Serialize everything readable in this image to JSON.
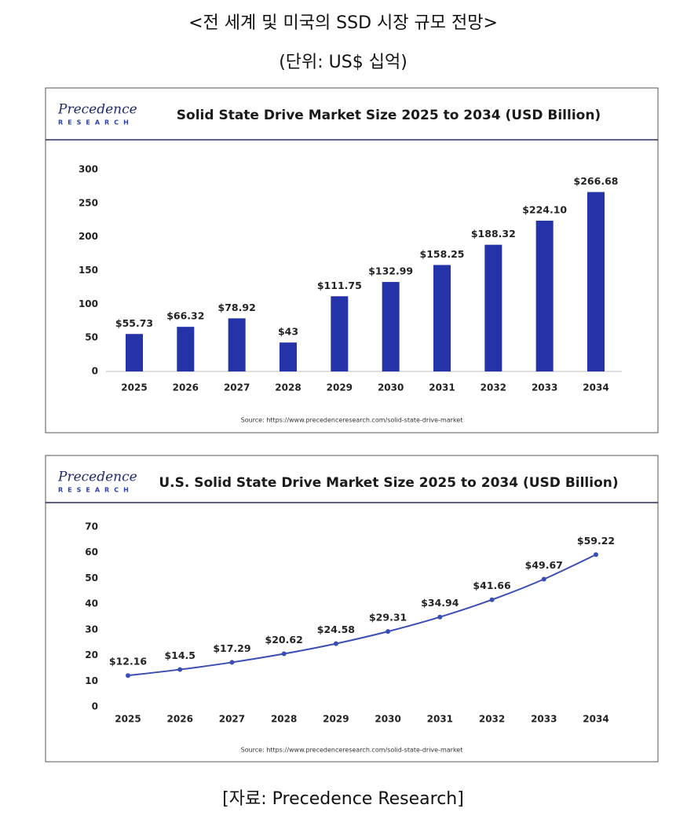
{
  "header": {
    "title": "<전 세계 및 미국의 SSD 시장 규모 전망>",
    "unit": "(단위: US$ 십억)"
  },
  "chart_data": [
    {
      "type": "bar",
      "logo": {
        "name": "Precedence",
        "sub": "RESEARCH"
      },
      "title": "Solid State Drive Market Size 2025 to 2034 (USD Billion)",
      "categories": [
        "2025",
        "2026",
        "2027",
        "2028",
        "2029",
        "2030",
        "2031",
        "2032",
        "2033",
        "2034"
      ],
      "values": [
        55.73,
        66.32,
        78.92,
        43,
        111.75,
        132.99,
        158.25,
        188.32,
        224.1,
        266.68
      ],
      "value_labels": [
        "$55.73",
        "$66.32",
        "$78.92",
        "$43",
        "$111.75",
        "$132.99",
        "$158.25",
        "$188.32",
        "$224.10",
        "$266.68"
      ],
      "color": "#2433a8",
      "ylim": [
        0,
        300
      ],
      "yticks": [
        0,
        50,
        100,
        150,
        200,
        250,
        300
      ],
      "grid": false,
      "source": "Source: https://www.precedenceresearch.com/solid-state-drive-market"
    },
    {
      "type": "line",
      "logo": {
        "name": "Precedence",
        "sub": "RESEARCH"
      },
      "title": "U.S. Solid State Drive Market Size 2025 to 2034 (USD Billion)",
      "categories": [
        "2025",
        "2026",
        "2027",
        "2028",
        "2029",
        "2030",
        "2031",
        "2032",
        "2033",
        "2034"
      ],
      "values": [
        12.16,
        14.5,
        17.29,
        20.62,
        24.58,
        29.31,
        34.94,
        41.66,
        49.67,
        59.22
      ],
      "value_labels": [
        "$12.16",
        "$14.5",
        "$17.29",
        "$20.62",
        "$24.58",
        "$29.31",
        "$34.94",
        "$41.66",
        "$49.67",
        "$59.22"
      ],
      "color": "#3a4db3",
      "ylim": [
        0,
        70
      ],
      "yticks": [
        0,
        10,
        20,
        30,
        40,
        50,
        60,
        70
      ],
      "grid": false,
      "source": "Source: https://www.precedenceresearch.com/solid-state-drive-market"
    }
  ],
  "footer": "[자료: Precedence Research]"
}
